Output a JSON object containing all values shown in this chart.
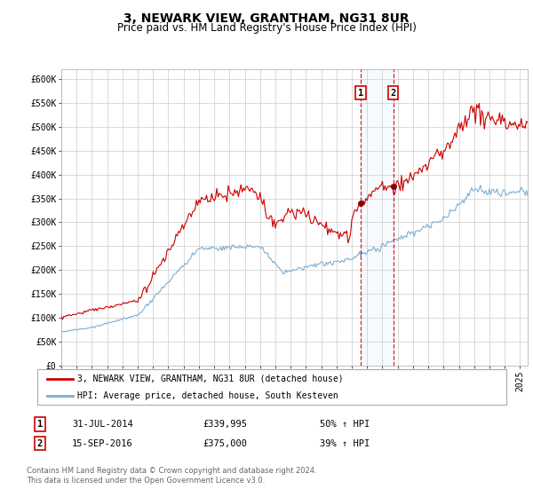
{
  "title": "3, NEWARK VIEW, GRANTHAM, NG31 8UR",
  "subtitle": "Price paid vs. HM Land Registry's House Price Index (HPI)",
  "ylim": [
    0,
    620000
  ],
  "yticks": [
    0,
    50000,
    100000,
    150000,
    200000,
    250000,
    300000,
    350000,
    400000,
    450000,
    500000,
    550000,
    600000
  ],
  "ytick_labels": [
    "£0",
    "£50K",
    "£100K",
    "£150K",
    "£200K",
    "£250K",
    "£300K",
    "£350K",
    "£400K",
    "£450K",
    "£500K",
    "£550K",
    "£600K"
  ],
  "xlim_start": 1995.0,
  "xlim_end": 2025.5,
  "line1_color": "#cc0000",
  "line2_color": "#7bafd4",
  "marker_color": "#880000",
  "transaction1_x": 2014.577,
  "transaction1_y": 339995,
  "transaction2_x": 2016.707,
  "transaction2_y": 375000,
  "legend_label1": "3, NEWARK VIEW, GRANTHAM, NG31 8UR (detached house)",
  "legend_label2": "HPI: Average price, detached house, South Kesteven",
  "table_row1": [
    "1",
    "31-JUL-2014",
    "£339,995",
    "50% ↑ HPI"
  ],
  "table_row2": [
    "2",
    "15-SEP-2016",
    "£375,000",
    "39% ↑ HPI"
  ],
  "footer_text": "Contains HM Land Registry data © Crown copyright and database right 2024.\nThis data is licensed under the Open Government Licence v3.0.",
  "background_color": "#ffffff",
  "grid_color": "#cccccc",
  "title_fontsize": 10,
  "subtitle_fontsize": 8.5,
  "tick_fontsize": 7
}
